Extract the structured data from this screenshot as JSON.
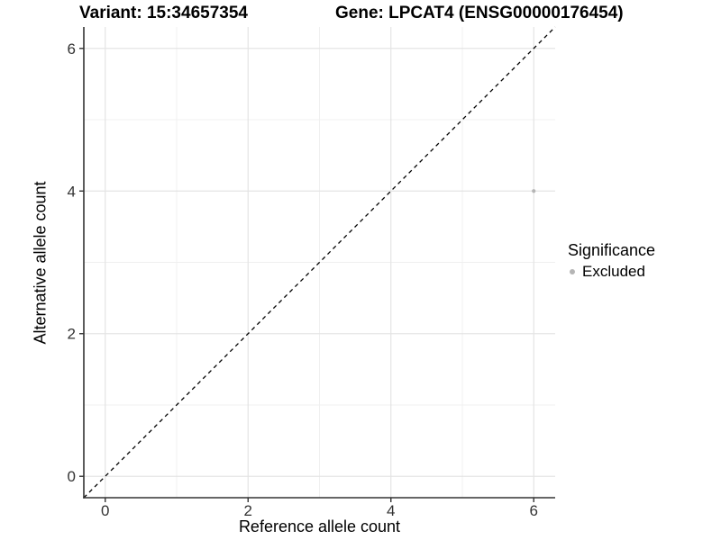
{
  "chart_data": {
    "type": "scatter",
    "titles": {
      "left": "Variant: 15:34657354",
      "right": "Gene: LPCAT4 (ENSG00000176454)"
    },
    "xlabel": "Reference allele count",
    "ylabel": "Alternative allele count",
    "xlim": [
      -0.3,
      6.3
    ],
    "ylim": [
      -0.3,
      6.3
    ],
    "ticks": {
      "x": [
        0,
        2,
        4,
        6
      ],
      "y": [
        0,
        2,
        4,
        6
      ],
      "minor_x": [
        1,
        3,
        5
      ],
      "minor_y": [
        1,
        3,
        5
      ]
    },
    "grid": true,
    "series": [
      {
        "name": "Excluded",
        "color": "#b5b5b5",
        "marker_size": 2.1,
        "points": [
          [
            6,
            4
          ]
        ]
      }
    ],
    "identity_line": {
      "style": "dashed",
      "color": "#000000",
      "from": [
        -0.3,
        -0.3
      ],
      "to": [
        6.3,
        6.3
      ]
    },
    "legend": {
      "position": "right",
      "title": "Significance",
      "items": [
        {
          "label": "Excluded",
          "color": "#b5b5b5"
        }
      ]
    },
    "style": {
      "background": "#ffffff",
      "axis_line_color": "#333333",
      "tick_label_color": "#333333",
      "grid_major_color": "#e4e4e4",
      "grid_minor_color": "#f0f0f0"
    }
  }
}
